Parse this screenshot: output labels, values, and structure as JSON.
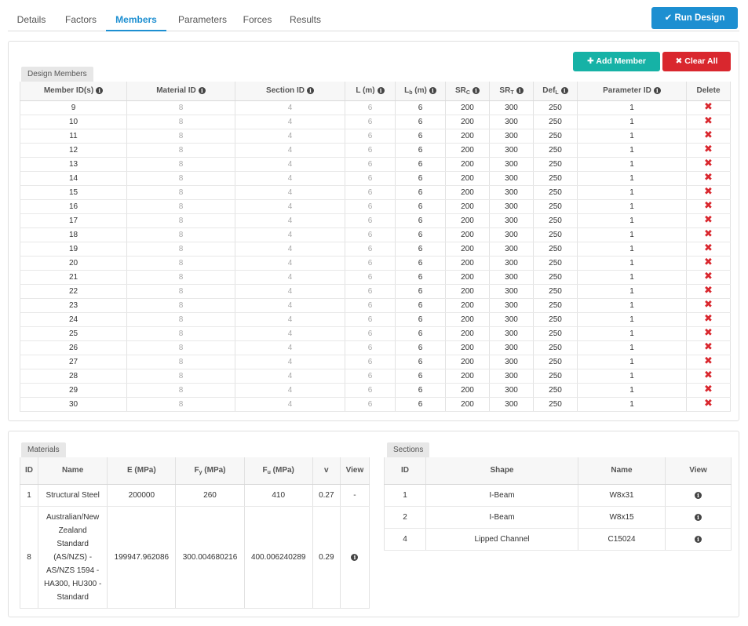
{
  "tabs": [
    {
      "label": "Details",
      "active": false
    },
    {
      "label": "Factors",
      "active": false
    },
    {
      "label": "Members",
      "active": true
    },
    {
      "label": "Parameters",
      "active": false
    },
    {
      "label": "Forces",
      "active": false
    },
    {
      "label": "Results",
      "active": false
    }
  ],
  "run_design_label": "Run Design",
  "members_panel": {
    "chip": "Design Members",
    "add_label": "Add Member",
    "clear_label": "Clear All",
    "headers": {
      "member_ids": "Member ID(s)",
      "material_id": "Material ID",
      "section_id": "Section ID",
      "l": "L (m)",
      "lb_main": "L",
      "lb_sub": "b",
      "lb_unit": " (m)",
      "src_main": "SR",
      "src_sub": "C",
      "srt_main": "SR",
      "srt_sub": "T",
      "defl_main": "Def",
      "defl_sub": "L",
      "parameter_id": "Parameter ID",
      "delete": "Delete"
    },
    "rows": [
      {
        "id": "9",
        "material": "8",
        "section": "4",
        "l": "6",
        "lb": "6",
        "src": "200",
        "srt": "300",
        "defl": "250",
        "param": "1"
      },
      {
        "id": "10",
        "material": "8",
        "section": "4",
        "l": "6",
        "lb": "6",
        "src": "200",
        "srt": "300",
        "defl": "250",
        "param": "1"
      },
      {
        "id": "11",
        "material": "8",
        "section": "4",
        "l": "6",
        "lb": "6",
        "src": "200",
        "srt": "300",
        "defl": "250",
        "param": "1"
      },
      {
        "id": "12",
        "material": "8",
        "section": "4",
        "l": "6",
        "lb": "6",
        "src": "200",
        "srt": "300",
        "defl": "250",
        "param": "1"
      },
      {
        "id": "13",
        "material": "8",
        "section": "4",
        "l": "6",
        "lb": "6",
        "src": "200",
        "srt": "300",
        "defl": "250",
        "param": "1"
      },
      {
        "id": "14",
        "material": "8",
        "section": "4",
        "l": "6",
        "lb": "6",
        "src": "200",
        "srt": "300",
        "defl": "250",
        "param": "1"
      },
      {
        "id": "15",
        "material": "8",
        "section": "4",
        "l": "6",
        "lb": "6",
        "src": "200",
        "srt": "300",
        "defl": "250",
        "param": "1"
      },
      {
        "id": "16",
        "material": "8",
        "section": "4",
        "l": "6",
        "lb": "6",
        "src": "200",
        "srt": "300",
        "defl": "250",
        "param": "1"
      },
      {
        "id": "17",
        "material": "8",
        "section": "4",
        "l": "6",
        "lb": "6",
        "src": "200",
        "srt": "300",
        "defl": "250",
        "param": "1"
      },
      {
        "id": "18",
        "material": "8",
        "section": "4",
        "l": "6",
        "lb": "6",
        "src": "200",
        "srt": "300",
        "defl": "250",
        "param": "1"
      },
      {
        "id": "19",
        "material": "8",
        "section": "4",
        "l": "6",
        "lb": "6",
        "src": "200",
        "srt": "300",
        "defl": "250",
        "param": "1"
      },
      {
        "id": "20",
        "material": "8",
        "section": "4",
        "l": "6",
        "lb": "6",
        "src": "200",
        "srt": "300",
        "defl": "250",
        "param": "1"
      },
      {
        "id": "21",
        "material": "8",
        "section": "4",
        "l": "6",
        "lb": "6",
        "src": "200",
        "srt": "300",
        "defl": "250",
        "param": "1"
      },
      {
        "id": "22",
        "material": "8",
        "section": "4",
        "l": "6",
        "lb": "6",
        "src": "200",
        "srt": "300",
        "defl": "250",
        "param": "1"
      },
      {
        "id": "23",
        "material": "8",
        "section": "4",
        "l": "6",
        "lb": "6",
        "src": "200",
        "srt": "300",
        "defl": "250",
        "param": "1"
      },
      {
        "id": "24",
        "material": "8",
        "section": "4",
        "l": "6",
        "lb": "6",
        "src": "200",
        "srt": "300",
        "defl": "250",
        "param": "1"
      },
      {
        "id": "25",
        "material": "8",
        "section": "4",
        "l": "6",
        "lb": "6",
        "src": "200",
        "srt": "300",
        "defl": "250",
        "param": "1"
      },
      {
        "id": "26",
        "material": "8",
        "section": "4",
        "l": "6",
        "lb": "6",
        "src": "200",
        "srt": "300",
        "defl": "250",
        "param": "1"
      },
      {
        "id": "27",
        "material": "8",
        "section": "4",
        "l": "6",
        "lb": "6",
        "src": "200",
        "srt": "300",
        "defl": "250",
        "param": "1"
      },
      {
        "id": "28",
        "material": "8",
        "section": "4",
        "l": "6",
        "lb": "6",
        "src": "200",
        "srt": "300",
        "defl": "250",
        "param": "1"
      },
      {
        "id": "29",
        "material": "8",
        "section": "4",
        "l": "6",
        "lb": "6",
        "src": "200",
        "srt": "300",
        "defl": "250",
        "param": "1"
      },
      {
        "id": "30",
        "material": "8",
        "section": "4",
        "l": "6",
        "lb": "6",
        "src": "200",
        "srt": "300",
        "defl": "250",
        "param": "1"
      }
    ]
  },
  "materials": {
    "chip": "Materials",
    "headers": {
      "id": "ID",
      "name": "Name",
      "e": "E (MPa)",
      "fy_main": "F",
      "fy_sub": "y",
      "fy_unit": " (MPa)",
      "fu_main": "F",
      "fu_sub": "u",
      "fu_unit": " (MPa)",
      "v": "v",
      "view": "View"
    },
    "rows": [
      {
        "id": "1",
        "name": "Structural Steel",
        "e": "200000",
        "fy": "260",
        "fu": "410",
        "v": "0.27",
        "view": "-"
      },
      {
        "id": "8",
        "name": "Australian/New Zealand Standard (AS/NZS) - AS/NZS 1594 - HA300, HU300 - Standard",
        "e": "199947.962086",
        "fy": "300.004680216",
        "fu": "400.006240289",
        "v": "0.29",
        "view": "info"
      }
    ]
  },
  "sections": {
    "chip": "Sections",
    "headers": {
      "id": "ID",
      "shape": "Shape",
      "name": "Name",
      "view": "View"
    },
    "rows": [
      {
        "id": "1",
        "shape": "I-Beam",
        "name": "W8x31"
      },
      {
        "id": "2",
        "shape": "I-Beam",
        "name": "W8x15"
      },
      {
        "id": "4",
        "shape": "Lipped Channel",
        "name": "C15024"
      }
    ]
  },
  "colors": {
    "accent": "#1d8fd1",
    "add": "#16b2a6",
    "clear": "#d9272e"
  },
  "icons": {
    "run": "check-icon",
    "add": "plus-icon",
    "clear": "x-icon",
    "info": "info-icon",
    "delete": "delete-x-icon"
  }
}
